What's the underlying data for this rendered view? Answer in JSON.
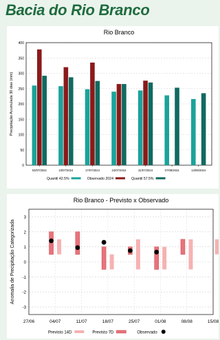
{
  "page": {
    "title": "Bacia do Rio Branco"
  },
  "chart_data": [
    {
      "type": "bar",
      "title": "Rio Branco",
      "ylabel": "Precipitação Acumulada 30 dias (mm)",
      "xlabel": "",
      "ylim": [
        0,
        400
      ],
      "yticks": [
        0,
        50,
        100,
        150,
        200,
        250,
        300,
        350,
        400
      ],
      "grid": true,
      "legend_position": "bottom",
      "categories": [
        "03/07/2024",
        "10/07/2024",
        "17/07/2024",
        "24/07/2024",
        "31/07/2024",
        "07/08/2024",
        "14/08/2024"
      ],
      "series": [
        {
          "name": "Quantil 42.5%",
          "color": "#1aa39a",
          "values": [
            260,
            258,
            248,
            240,
            244,
            228,
            216
          ]
        },
        {
          "name": "Observado 2024",
          "color": "#8b1a1a",
          "values": [
            378,
            320,
            335,
            265,
            276,
            null,
            null
          ]
        },
        {
          "name": "Quantil 57.5%",
          "color": "#106a60",
          "values": [
            292,
            287,
            275,
            265,
            270,
            253,
            235
          ]
        }
      ]
    },
    {
      "type": "range",
      "title": "Rio Branco - Previsto x Observado",
      "ylabel": "Anomalia de Precipitação Categorizada",
      "xlabel": "",
      "ylim": [
        -3.5,
        3.5
      ],
      "yticks": [
        -3,
        -2,
        -1,
        0,
        1,
        2,
        3
      ],
      "grid": true,
      "legend_position": "bottom",
      "x_ticks": [
        "27/06",
        "04/07",
        "11/07",
        "18/07",
        "25/07",
        "01/08",
        "08/08",
        "15/08"
      ],
      "series": [
        {
          "name": "Previsto 14D",
          "color": "#f5b2b2",
          "ranges": [
            {
              "date_index": 0.15,
              "low": 0.5,
              "high": 1.5
            },
            {
              "date_index": 2.15,
              "low": -0.5,
              "high": 0.5
            },
            {
              "date_index": 3.15,
              "low": -0.5,
              "high": 1.5
            },
            {
              "date_index": 4.15,
              "low": -0.5,
              "high": 1.0
            },
            {
              "date_index": 5.15,
              "low": -0.5,
              "high": 1.5
            },
            {
              "date_index": 6.15,
              "low": 0.5,
              "high": 1.5
            }
          ]
        },
        {
          "name": "Previsto 7D",
          "color": "#e8737b",
          "ranges": [
            {
              "date_index": -0.15,
              "low": 0.5,
              "high": 2.0
            },
            {
              "date_index": 0.85,
              "low": 0.5,
              "high": 2.0
            },
            {
              "date_index": 1.85,
              "low": -0.5,
              "high": 1.0
            },
            {
              "date_index": 2.85,
              "low": 0.5,
              "high": 1.0
            },
            {
              "date_index": 3.85,
              "low": -0.5,
              "high": 1.0
            },
            {
              "date_index": 4.85,
              "low": 0.5,
              "high": 1.5
            }
          ]
        },
        {
          "name": "Observado",
          "color": "#000000",
          "points": [
            {
              "date_index": -0.15,
              "value": 1.4
            },
            {
              "date_index": 0.85,
              "value": 0.95
            },
            {
              "date_index": 1.85,
              "value": 1.3
            },
            {
              "date_index": 2.85,
              "value": 0.75
            },
            {
              "date_index": 3.85,
              "value": 0.65
            }
          ]
        }
      ]
    }
  ]
}
